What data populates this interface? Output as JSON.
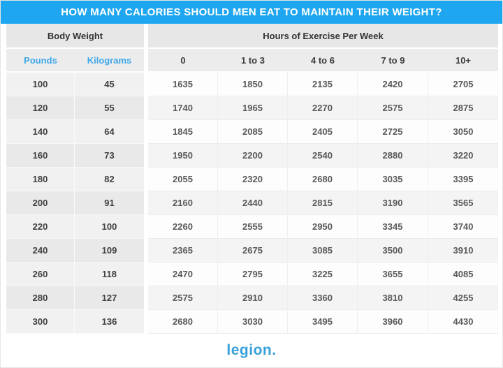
{
  "banner": {
    "title": "HOW MANY CALORIES SHOULD MEN EAT TO MAINTAIN THEIR WEIGHT?"
  },
  "chart_data": {
    "type": "table",
    "title": "HOW MANY CALORIES SHOULD MEN EAT TO MAINTAIN THEIR WEIGHT?",
    "column_groups": [
      "Body Weight",
      "Hours of Exercise Per Week"
    ],
    "columns": [
      "Pounds",
      "Kilograms",
      "0",
      "1 to 3",
      "4 to 6",
      "7 to 9",
      "10+"
    ],
    "rows": [
      [
        100,
        45,
        1635,
        1850,
        2135,
        2420,
        2705
      ],
      [
        120,
        55,
        1740,
        1965,
        2270,
        2575,
        2875
      ],
      [
        140,
        64,
        1845,
        2085,
        2405,
        2725,
        3050
      ],
      [
        160,
        73,
        1950,
        2200,
        2540,
        2880,
        3220
      ],
      [
        180,
        82,
        2055,
        2320,
        2680,
        3035,
        3395
      ],
      [
        200,
        91,
        2160,
        2440,
        2815,
        3190,
        3565
      ],
      [
        220,
        100,
        2260,
        2555,
        2950,
        3345,
        3740
      ],
      [
        240,
        109,
        2365,
        2675,
        3085,
        3500,
        3910
      ],
      [
        260,
        118,
        2470,
        2795,
        3225,
        3655,
        4085
      ],
      [
        280,
        127,
        2575,
        2910,
        3360,
        3810,
        4255
      ],
      [
        300,
        136,
        2680,
        3030,
        3495,
        3960,
        4430
      ]
    ]
  },
  "footer": {
    "logo_text": "legion."
  },
  "colors": {
    "banner_blue": "#1ea7f0",
    "column_header_blue": "#3fa8e9",
    "logo_blue": "#379fd9",
    "header_gray": "#e7e7e7",
    "data_text": "#58595b"
  }
}
